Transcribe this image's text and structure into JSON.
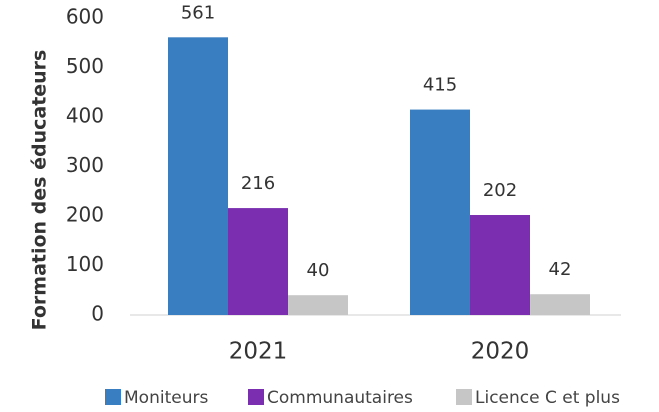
{
  "chart_data": {
    "type": "bar",
    "y_label": "Formation des éducateurs",
    "categories": [
      "2021",
      "2020"
    ],
    "series": [
      {
        "name": "Moniteurs",
        "color": "#3a7ec2",
        "values": [
          561,
          415
        ]
      },
      {
        "name": "Communautaires",
        "color": "#7b2fb0",
        "values": [
          216,
          202
        ]
      },
      {
        "name": "Licence C et plus",
        "color": "#c6c6c6",
        "values": [
          40,
          42
        ]
      }
    ],
    "ylim": [
      0,
      600
    ],
    "yticks": [
      0,
      100,
      200,
      300,
      400,
      500,
      600
    ],
    "grid": false,
    "legend": "bottom"
  }
}
